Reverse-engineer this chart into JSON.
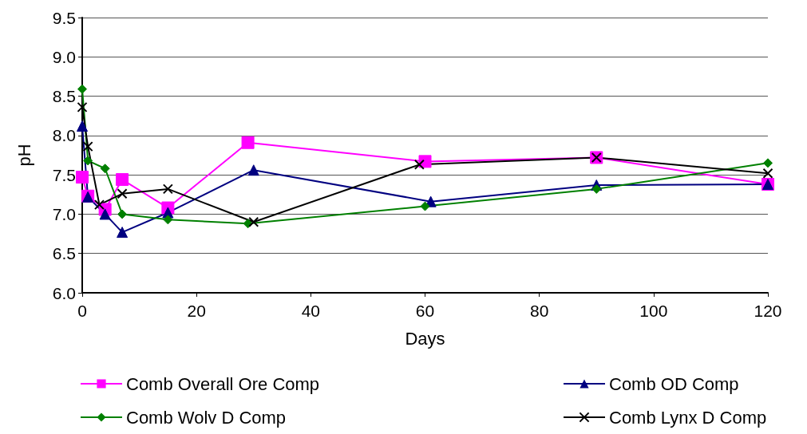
{
  "chart_data": {
    "type": "line",
    "xlabel": "Days",
    "ylabel": "pH",
    "xlim": [
      0,
      120
    ],
    "xticks": [
      0,
      20,
      40,
      60,
      80,
      100,
      120
    ],
    "ylim": [
      6.0,
      9.5
    ],
    "yticks": [
      {
        "value": 6.0,
        "label": "6.0"
      },
      {
        "value": 6.5,
        "label": "6.5"
      },
      {
        "value": 7.0,
        "label": "7.0"
      },
      {
        "value": 7.5,
        "label": "7.5"
      },
      {
        "value": 8.0,
        "label": "8.0"
      },
      {
        "value": 8.5,
        "label": "8.5"
      },
      {
        "value": 9.0,
        "label": "9.0"
      },
      {
        "value": 9.5,
        "label": "9.5"
      }
    ],
    "grid": "y",
    "legend": "bottom",
    "line_style": "solid",
    "series": [
      {
        "name": "Comb Overall Ore Comp",
        "color": "#ff00ff",
        "marker": "square",
        "x": [
          0,
          1,
          4,
          7,
          15,
          29,
          60,
          90,
          120
        ],
        "values": [
          7.47,
          7.23,
          7.06,
          7.44,
          7.08,
          7.91,
          7.67,
          7.72,
          7.38
        ]
      },
      {
        "name": "Comb OD Comp",
        "color": "#000080",
        "marker": "triangle",
        "x": [
          0,
          1,
          4,
          7,
          15,
          30,
          61,
          90,
          120
        ],
        "values": [
          8.12,
          7.22,
          7.0,
          6.77,
          7.02,
          7.56,
          7.16,
          7.37,
          7.38
        ]
      },
      {
        "name": "Comb Wolv D Comp",
        "color": "#008000",
        "marker": "diamond",
        "x": [
          0,
          1,
          4,
          7,
          15,
          29,
          60,
          90,
          120
        ],
        "values": [
          8.59,
          7.68,
          7.58,
          7.0,
          6.93,
          6.88,
          7.1,
          7.32,
          7.65
        ]
      },
      {
        "name": "Comb Lynx D Comp",
        "color": "#000000",
        "marker": "cross",
        "x": [
          0,
          1,
          3,
          7,
          15,
          30,
          59,
          90,
          120
        ],
        "values": [
          8.36,
          7.86,
          7.12,
          7.26,
          7.32,
          6.9,
          7.63,
          7.72,
          7.52
        ]
      }
    ]
  }
}
